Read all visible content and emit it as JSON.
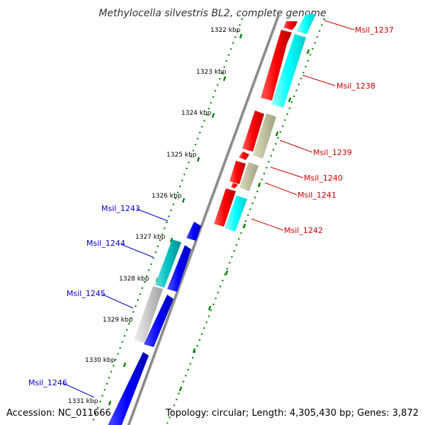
{
  "header": {
    "title": "Methylocella silvestris BL2, complete genome"
  },
  "footer": {
    "accession": "Accession: NC_011666",
    "topology": "Topology: circular; Length: 4,305,430 bp; Genes: 3,872"
  },
  "colors": {
    "forward_gene": "#ff0000",
    "reverse_gene": "#0000ff",
    "forward_track_highlight": "#00ffff",
    "reverse_track_highlight": "#00c0c0",
    "neutral_gene": "#c0c0a0",
    "neutral_gene_reverse": "#c8c8c8",
    "backbone": "#808080",
    "tick_mark": "#008000",
    "forward_label": "#cc0000",
    "reverse_label": "#0000cc"
  },
  "ticks": [
    "1322 kbp",
    "1323 kbp",
    "1324 kbp",
    "1325 kbp",
    "1326 kbp",
    "1327 kbp",
    "1328 kbp",
    "1329 kbp",
    "1330 kbp",
    "1331 kbp"
  ],
  "forward_labels": [
    "Msil_1237",
    "Msil_1238",
    "Msil_1239",
    "Msil_1240",
    "Msil_1241",
    "Msil_1242"
  ],
  "reverse_labels": [
    "Msil_1243",
    "Msil_1244",
    "Msil_1245",
    "Msil_1246"
  ]
}
